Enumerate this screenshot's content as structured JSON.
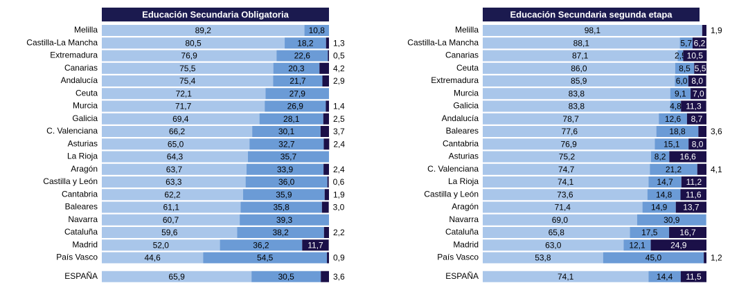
{
  "chart_data": [
    {
      "type": "bar",
      "orientation": "horizontal",
      "stacked": true,
      "title": "Educación Secundaria Obligatoria",
      "categories": [
        "Melilla",
        "Castilla-La Mancha",
        "Extremadura",
        "Canarias",
        "Andalucía",
        "Ceuta",
        "Murcia",
        "Galicia",
        "C. Valenciana",
        "Asturias",
        "La Rioja",
        "Aragón",
        "Castilla y León",
        "Cantabria",
        "Baleares",
        "Navarra",
        "Cataluña",
        "Madrid",
        "País Vasco",
        "ESPAÑA"
      ],
      "xlim": [
        0,
        100
      ],
      "series": [
        {
          "color": "#a9c6ea",
          "values": [
            89.2,
            80.5,
            76.9,
            75.5,
            75.4,
            72.1,
            71.7,
            69.4,
            66.2,
            65.0,
            64.3,
            63.7,
            63.3,
            62.2,
            61.1,
            60.7,
            59.6,
            52.0,
            44.6,
            65.9
          ],
          "value_labels": [
            "89,2",
            "80,5",
            "76,9",
            "75,5",
            "75,4",
            "72,1",
            "71,7",
            "69,4",
            "66,2",
            "65,0",
            "64,3",
            "63,7",
            "63,3",
            "62,2",
            "61,1",
            "60,7",
            "59,6",
            "52,0",
            "44,6",
            "65,9"
          ]
        },
        {
          "color": "#6b9bd6",
          "values": [
            10.8,
            18.2,
            22.6,
            20.3,
            21.7,
            27.9,
            26.9,
            28.1,
            30.1,
            32.7,
            35.7,
            33.9,
            36.0,
            35.9,
            35.8,
            39.3,
            38.2,
            36.2,
            54.5,
            30.5
          ],
          "value_labels": [
            "10,8",
            "18,2",
            "22,6",
            "20,3",
            "21,7",
            "27,9",
            "26,9",
            "28,1",
            "30,1",
            "32,7",
            "35,7",
            "33,9",
            "36,0",
            "35,9",
            "35,8",
            "39,3",
            "38,2",
            "36,2",
            "54,5",
            "30,5"
          ]
        },
        {
          "color": "#1b1048",
          "values": [
            null,
            1.3,
            0.5,
            4.2,
            2.9,
            null,
            1.4,
            2.5,
            3.7,
            2.4,
            null,
            2.4,
            0.6,
            1.9,
            3.0,
            null,
            2.2,
            11.7,
            0.9,
            3.6
          ],
          "value_labels": [
            null,
            "1,3",
            "0,5",
            "4,2",
            "2,9",
            null,
            "1,4",
            "2,5",
            "3,7",
            "2,4",
            null,
            "2,4",
            "0,6",
            "1,9",
            "3,0",
            null,
            "2,2",
            "11,7",
            "0,9",
            "3,6"
          ]
        }
      ]
    },
    {
      "type": "bar",
      "orientation": "horizontal",
      "stacked": true,
      "title": "Educación Secundaria segunda etapa",
      "categories": [
        "Melilla",
        "Castilla-La Mancha",
        "Canarias",
        "Ceuta",
        "Extremadura",
        "Murcia",
        "Galicia",
        "Andalucía",
        "Baleares",
        "Cantabria",
        "Asturias",
        "C. Valenciana",
        "La Rioja",
        "Castilla y León",
        "Aragón",
        "Navarra",
        "Cataluña",
        "Madrid",
        "País Vasco",
        "ESPAÑA"
      ],
      "xlim": [
        0,
        100
      ],
      "series": [
        {
          "color": "#a9c6ea",
          "values": [
            98.1,
            88.1,
            87.1,
            86.0,
            85.9,
            83.8,
            83.8,
            78.7,
            77.6,
            76.9,
            75.2,
            74.7,
            74.1,
            73.6,
            71.4,
            69.0,
            65.8,
            63.0,
            53.8,
            74.1
          ],
          "value_labels": [
            "98,1",
            "88,1",
            "87,1",
            "86,0",
            "85,9",
            "83,8",
            "83,8",
            "78,7",
            "77,6",
            "76,9",
            "75,2",
            "74,7",
            "74,1",
            "73,6",
            "71,4",
            "69,0",
            "65,8",
            "63,0",
            "53,8",
            "74,1"
          ]
        },
        {
          "color": "#6b9bd6",
          "values": [
            null,
            5.7,
            2.5,
            8.5,
            6.0,
            9.1,
            4.8,
            12.6,
            18.8,
            15.1,
            8.2,
            21.2,
            14.7,
            14.8,
            14.9,
            30.9,
            17.5,
            12.1,
            45.0,
            14.4
          ],
          "value_labels": [
            null,
            "5,7",
            "2,5",
            "8,5",
            "6,0",
            "9,1",
            "4,8",
            "12,6",
            "18,8",
            "15,1",
            "8,2",
            "21,2",
            "14,7",
            "14,8",
            "14,9",
            "30,9",
            "17,5",
            "12,1",
            "45,0",
            "14,4"
          ]
        },
        {
          "color": "#1b1048",
          "values": [
            1.9,
            6.2,
            10.5,
            5.5,
            8.0,
            7.0,
            11.3,
            8.7,
            3.6,
            8.0,
            16.6,
            4.1,
            11.2,
            11.6,
            13.7,
            null,
            16.7,
            24.9,
            1.2,
            11.5
          ],
          "value_labels": [
            "1,9",
            "6,2",
            "10,5",
            "5,5",
            "8,0",
            "7,0",
            "11,3",
            "8,7",
            "3,6",
            "8,0",
            "16,6",
            "4,1",
            "11,2",
            "11,6",
            "13,7",
            null,
            "16,7",
            "24,9",
            "1,2",
            "11,5"
          ]
        }
      ]
    }
  ]
}
